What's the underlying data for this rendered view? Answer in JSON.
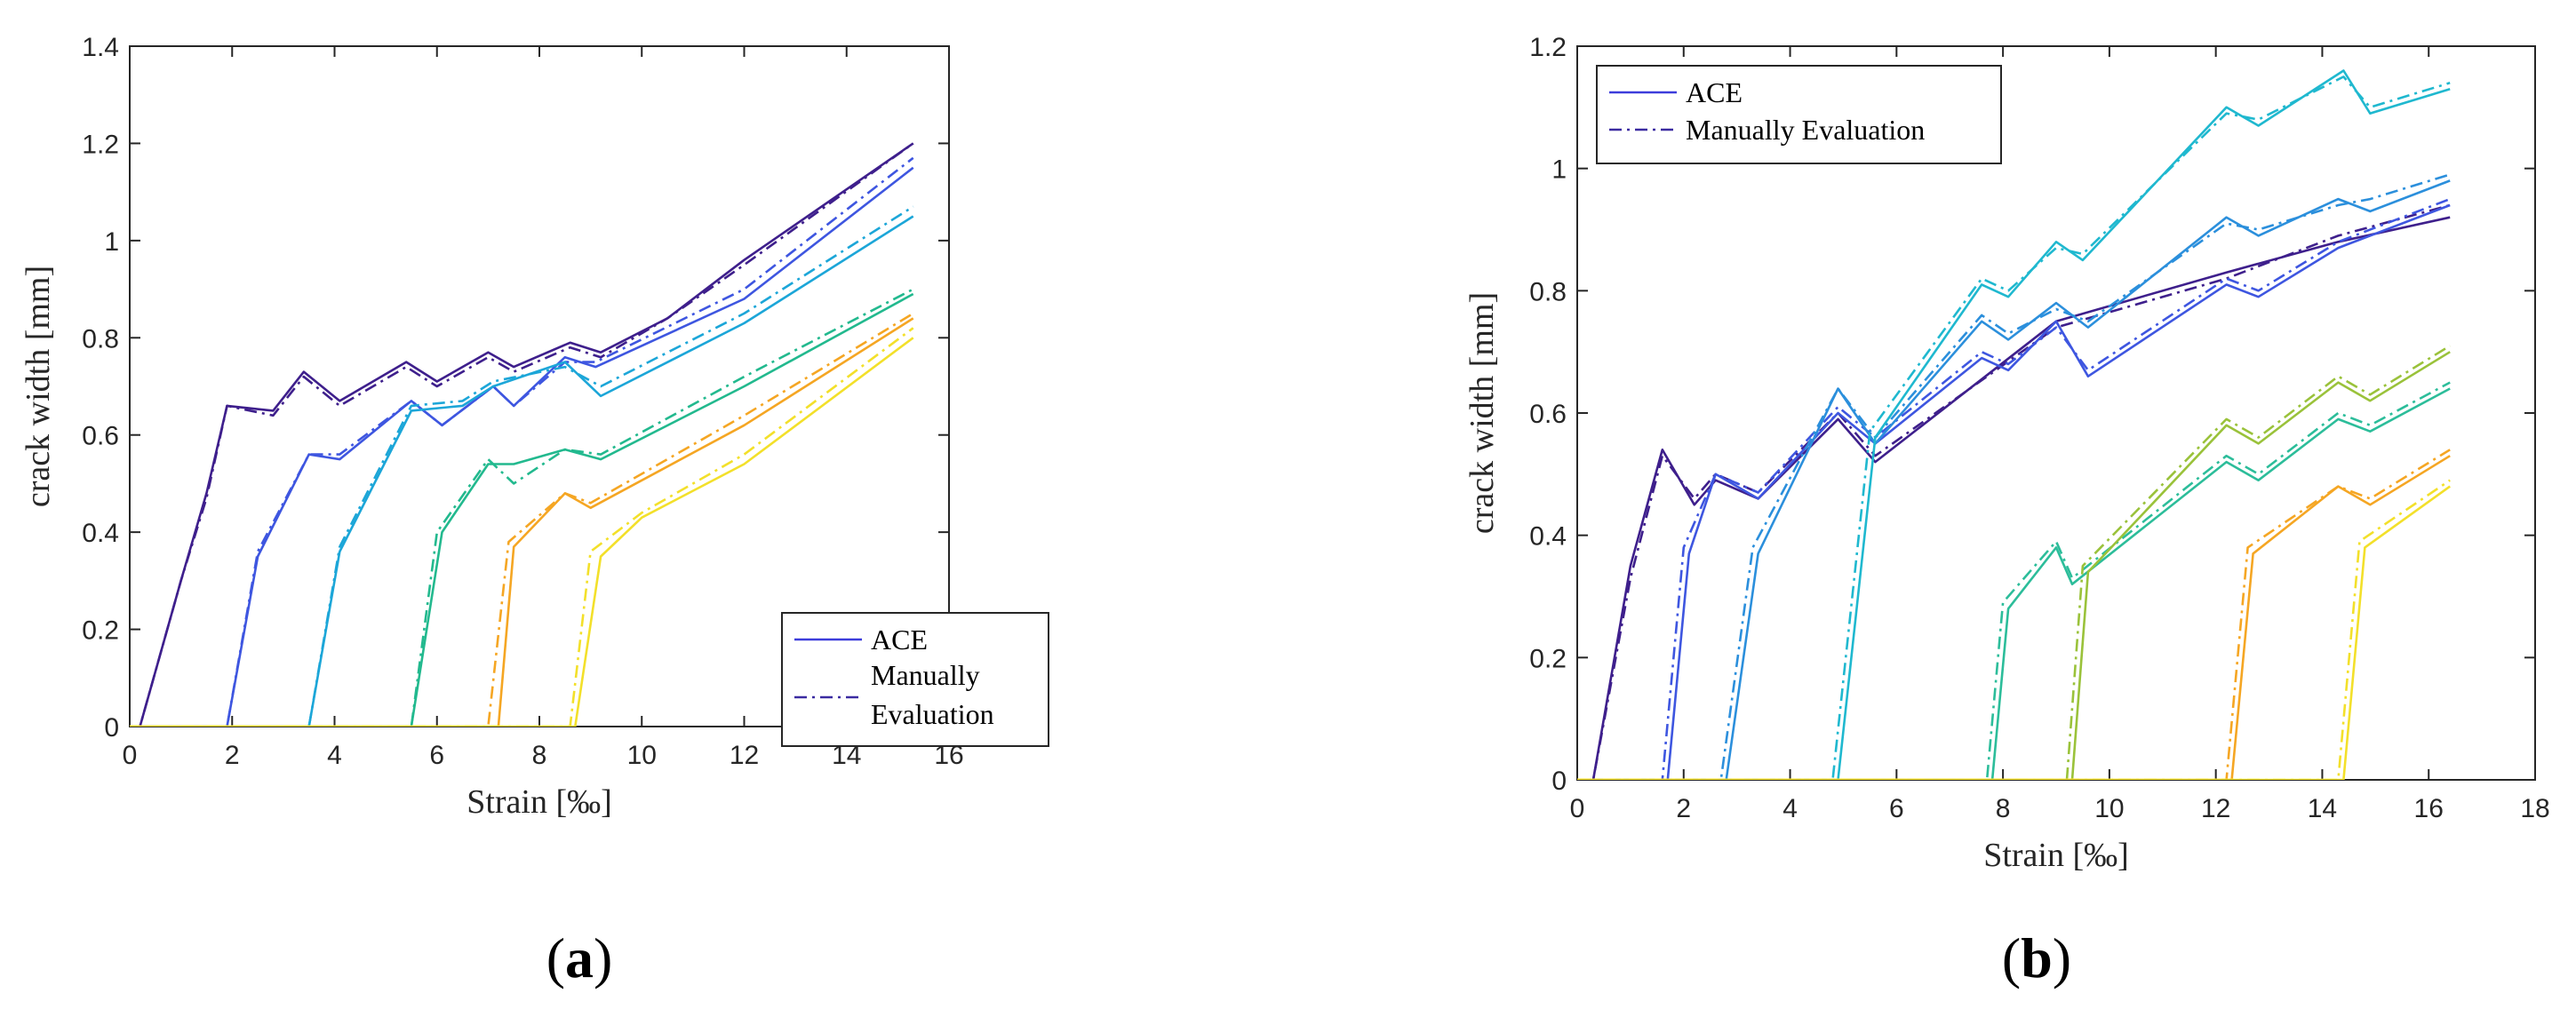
{
  "chart_data": [
    {
      "panel": "(a)",
      "type": "line",
      "xlabel": "Strain [‰]",
      "ylabel": "crack width [mm]",
      "xlim": [
        0,
        16
      ],
      "ylim": [
        0,
        1.4
      ],
      "xticks": [
        0,
        2,
        4,
        6,
        8,
        10,
        12,
        14,
        16
      ],
      "yticks": [
        0,
        0.2,
        0.4,
        0.6,
        0.8,
        1,
        1.2,
        1.4
      ],
      "grid": false,
      "legend": {
        "position": "bottom-right",
        "entries": [
          "ACE",
          "Manually Evaluation"
        ],
        "colors": [
          "#3d3ddb",
          "#3b2ba1"
        ],
        "styles": [
          "solid",
          "dashdot"
        ]
      },
      "series": [
        {
          "color": "#3e1f8c",
          "style": "solid",
          "x": [
            0,
            0.2,
            1,
            1.5,
            1.9,
            2.8,
            3.4,
            4.1,
            5.4,
            6,
            7,
            7.5,
            8.6,
            9.2,
            10.5,
            12,
            15.3
          ],
          "y": [
            0,
            0,
            0.3,
            0.48,
            0.66,
            0.65,
            0.73,
            0.67,
            0.75,
            0.71,
            0.77,
            0.74,
            0.79,
            0.77,
            0.84,
            0.96,
            1.2
          ]
        },
        {
          "color": "#3e1f8c",
          "style": "dashdot",
          "x": [
            0,
            0.2,
            1,
            1.5,
            1.9,
            2.8,
            3.4,
            4.1,
            5.4,
            6,
            7,
            7.5,
            8.6,
            9.2,
            10.5,
            12,
            15.3
          ],
          "y": [
            0,
            0,
            0.3,
            0.47,
            0.66,
            0.64,
            0.72,
            0.66,
            0.74,
            0.7,
            0.76,
            0.73,
            0.78,
            0.76,
            0.84,
            0.95,
            1.2
          ]
        },
        {
          "color": "#3e56e0",
          "style": "solid",
          "x": [
            0,
            1.9,
            2.5,
            3.5,
            4.1,
            5.5,
            6.1,
            7.1,
            7.5,
            8.5,
            9.1,
            12,
            15.3
          ],
          "y": [
            0,
            0,
            0.35,
            0.56,
            0.55,
            0.67,
            0.62,
            0.7,
            0.66,
            0.76,
            0.74,
            0.88,
            1.15
          ]
        },
        {
          "color": "#3e56e0",
          "style": "dashdot",
          "x": [
            0,
            1.9,
            2.5,
            3.5,
            4.1,
            5.5,
            6.1,
            7.1,
            7.5,
            8.5,
            9.1,
            12,
            15.3
          ],
          "y": [
            0,
            0,
            0.36,
            0.56,
            0.56,
            0.67,
            0.62,
            0.7,
            0.66,
            0.75,
            0.75,
            0.9,
            1.17
          ]
        },
        {
          "color": "#1ca6d8",
          "style": "solid",
          "x": [
            0,
            3.5,
            4.1,
            5.5,
            6.5,
            7.1,
            8.5,
            9.2,
            12,
            15.3
          ],
          "y": [
            0,
            0,
            0.36,
            0.65,
            0.66,
            0.7,
            0.75,
            0.68,
            0.83,
            1.05
          ]
        },
        {
          "color": "#1ca6d8",
          "style": "dashdot",
          "x": [
            0,
            3.5,
            4.1,
            5.5,
            6.5,
            7.1,
            8.5,
            9.2,
            12,
            15.3
          ],
          "y": [
            0,
            0,
            0.37,
            0.66,
            0.67,
            0.71,
            0.74,
            0.7,
            0.85,
            1.07
          ]
        },
        {
          "color": "#22b98e",
          "style": "solid",
          "x": [
            0,
            5.5,
            6.1,
            7,
            7.5,
            8.5,
            9.2,
            12,
            15.3
          ],
          "y": [
            0,
            0,
            0.4,
            0.54,
            0.54,
            0.57,
            0.55,
            0.7,
            0.89
          ]
        },
        {
          "color": "#22b98e",
          "style": "dashdot",
          "x": [
            0,
            5.5,
            6.0,
            7,
            7.5,
            8.5,
            9.2,
            12,
            15.3
          ],
          "y": [
            0,
            0,
            0.4,
            0.55,
            0.5,
            0.57,
            0.56,
            0.72,
            0.9
          ]
        },
        {
          "color": "#f5a623",
          "style": "solid",
          "x": [
            0,
            7.2,
            7.5,
            8.5,
            9.0,
            12,
            15.3
          ],
          "y": [
            0,
            0,
            0.37,
            0.48,
            0.45,
            0.62,
            0.84
          ]
        },
        {
          "color": "#f5a623",
          "style": "dashdot",
          "x": [
            0,
            7.0,
            7.4,
            8.5,
            9.0,
            12,
            15.3
          ],
          "y": [
            0,
            0,
            0.38,
            0.48,
            0.46,
            0.64,
            0.85
          ]
        },
        {
          "color": "#f3e02a",
          "style": "solid",
          "x": [
            0,
            8.7,
            9.2,
            10,
            12,
            15.3
          ],
          "y": [
            0,
            0,
            0.35,
            0.43,
            0.54,
            0.8
          ]
        },
        {
          "color": "#f3e02a",
          "style": "dashdot",
          "x": [
            0,
            8.6,
            9.0,
            10,
            12,
            15.3
          ],
          "y": [
            0,
            0,
            0.36,
            0.44,
            0.56,
            0.82
          ]
        }
      ]
    },
    {
      "panel": "(b)",
      "type": "line",
      "xlabel": "Strain [‰]",
      "ylabel": "crack width [mm]",
      "xlim": [
        0,
        18
      ],
      "ylim": [
        0,
        1.2
      ],
      "xticks": [
        0,
        2,
        4,
        6,
        8,
        10,
        12,
        14,
        16,
        18
      ],
      "yticks": [
        0,
        0.2,
        0.4,
        0.6,
        0.8,
        1,
        1.2
      ],
      "grid": false,
      "legend": {
        "position": "top-left",
        "entries": [
          "ACE",
          "Manually Evaluation"
        ],
        "colors": [
          "#3d3ddb",
          "#3b2ba1"
        ],
        "styles": [
          "solid",
          "dashdot"
        ]
      },
      "series": [
        {
          "color": "#3e1f8c",
          "style": "solid",
          "x": [
            0,
            0.3,
            1.0,
            1.6,
            2.2,
            2.6,
            3.4,
            4.9,
            5.6,
            9.0,
            12.2,
            14.3,
            16.4
          ],
          "y": [
            0,
            0,
            0.35,
            0.54,
            0.45,
            0.49,
            0.46,
            0.59,
            0.52,
            0.75,
            0.83,
            0.88,
            0.92
          ]
        },
        {
          "color": "#3e1f8c",
          "style": "dashdot",
          "x": [
            0,
            0.3,
            1.0,
            1.6,
            2.2,
            2.6,
            3.4,
            4.9,
            5.6,
            9.0,
            12.2,
            14.3,
            16.4
          ],
          "y": [
            0,
            0,
            0.33,
            0.53,
            0.46,
            0.5,
            0.47,
            0.6,
            0.53,
            0.74,
            0.82,
            0.89,
            0.94
          ]
        },
        {
          "color": "#3e56e0",
          "style": "solid",
          "x": [
            0,
            1.7,
            2.1,
            2.6,
            3.4,
            4.9,
            5.6,
            7.6,
            8.1,
            9.0,
            9.6,
            12.2,
            12.8,
            14.3,
            16.4
          ],
          "y": [
            0,
            0,
            0.37,
            0.5,
            0.46,
            0.6,
            0.55,
            0.69,
            0.67,
            0.75,
            0.66,
            0.81,
            0.79,
            0.87,
            0.94
          ]
        },
        {
          "color": "#3e56e0",
          "style": "dashdot",
          "x": [
            0,
            1.6,
            2.0,
            2.6,
            3.4,
            4.9,
            5.6,
            7.6,
            8.1,
            9.0,
            9.6,
            12.2,
            12.8,
            14.3,
            16.4
          ],
          "y": [
            0,
            0,
            0.38,
            0.5,
            0.47,
            0.61,
            0.56,
            0.7,
            0.68,
            0.74,
            0.67,
            0.82,
            0.8,
            0.88,
            0.95
          ]
        },
        {
          "color": "#2b8fdc",
          "style": "solid",
          "x": [
            0,
            2.8,
            3.4,
            4.9,
            5.6,
            7.6,
            8.1,
            9.0,
            9.6,
            12.2,
            12.8,
            14.3,
            14.9,
            16.4
          ],
          "y": [
            0,
            0,
            0.37,
            0.64,
            0.55,
            0.75,
            0.72,
            0.78,
            0.74,
            0.92,
            0.89,
            0.95,
            0.93,
            0.98
          ]
        },
        {
          "color": "#2b8fdc",
          "style": "dashdot",
          "x": [
            0,
            2.7,
            3.3,
            4.9,
            5.6,
            7.6,
            8.1,
            9.0,
            9.6,
            12.2,
            12.8,
            14.3,
            14.9,
            16.4
          ],
          "y": [
            0,
            0,
            0.38,
            0.64,
            0.56,
            0.76,
            0.73,
            0.77,
            0.75,
            0.91,
            0.9,
            0.94,
            0.95,
            0.99
          ]
        },
        {
          "color": "#1fb8cf",
          "style": "solid",
          "x": [
            0,
            4.9,
            5.6,
            7.6,
            8.1,
            9.0,
            9.5,
            12.2,
            12.8,
            14.4,
            14.9,
            16.4
          ],
          "y": [
            0,
            0,
            0.56,
            0.81,
            0.79,
            0.88,
            0.85,
            1.1,
            1.07,
            1.16,
            1.09,
            1.13
          ]
        },
        {
          "color": "#1fb8cf",
          "style": "dashdot",
          "x": [
            0,
            4.8,
            5.5,
            7.6,
            8.1,
            9.0,
            9.5,
            12.2,
            12.8,
            14.4,
            14.9,
            16.4
          ],
          "y": [
            0,
            0,
            0.57,
            0.82,
            0.8,
            0.87,
            0.86,
            1.09,
            1.08,
            1.15,
            1.1,
            1.14
          ]
        },
        {
          "color": "#2cbd9a",
          "style": "solid",
          "x": [
            0,
            7.8,
            8.1,
            9.0,
            9.3,
            12.2,
            12.8,
            14.3,
            14.9,
            16.4
          ],
          "y": [
            0,
            0,
            0.28,
            0.38,
            0.32,
            0.52,
            0.49,
            0.59,
            0.57,
            0.64
          ]
        },
        {
          "color": "#2cbd9a",
          "style": "dashdot",
          "x": [
            0,
            7.7,
            8.0,
            9.0,
            9.3,
            12.2,
            12.8,
            14.3,
            14.9,
            16.4
          ],
          "y": [
            0,
            0,
            0.29,
            0.39,
            0.33,
            0.53,
            0.5,
            0.6,
            0.58,
            0.65
          ]
        },
        {
          "color": "#9ac23a",
          "style": "solid",
          "x": [
            0,
            9.3,
            9.6,
            12.2,
            12.8,
            14.3,
            14.9,
            16.4
          ],
          "y": [
            0,
            0,
            0.34,
            0.58,
            0.55,
            0.65,
            0.62,
            0.7
          ]
        },
        {
          "color": "#9ac23a",
          "style": "dashdot",
          "x": [
            0,
            9.2,
            9.5,
            12.2,
            12.8,
            14.3,
            14.9,
            16.4
          ],
          "y": [
            0,
            0,
            0.35,
            0.59,
            0.56,
            0.66,
            0.63,
            0.71
          ]
        },
        {
          "color": "#f5a623",
          "style": "solid",
          "x": [
            0,
            12.3,
            12.7,
            14.3,
            14.9,
            16.4
          ],
          "y": [
            0,
            0,
            0.37,
            0.48,
            0.45,
            0.53
          ]
        },
        {
          "color": "#f5a623",
          "style": "dashdot",
          "x": [
            0,
            12.2,
            12.6,
            14.3,
            14.9,
            16.4
          ],
          "y": [
            0,
            0,
            0.38,
            0.48,
            0.46,
            0.54
          ]
        },
        {
          "color": "#f3e02a",
          "style": "solid",
          "x": [
            0,
            14.4,
            14.8,
            16.4
          ],
          "y": [
            0,
            0,
            0.38,
            0.48
          ]
        },
        {
          "color": "#f3e02a",
          "style": "dashdot",
          "x": [
            0,
            14.3,
            14.7,
            16.4
          ],
          "y": [
            0,
            0,
            0.39,
            0.49
          ]
        }
      ]
    }
  ]
}
